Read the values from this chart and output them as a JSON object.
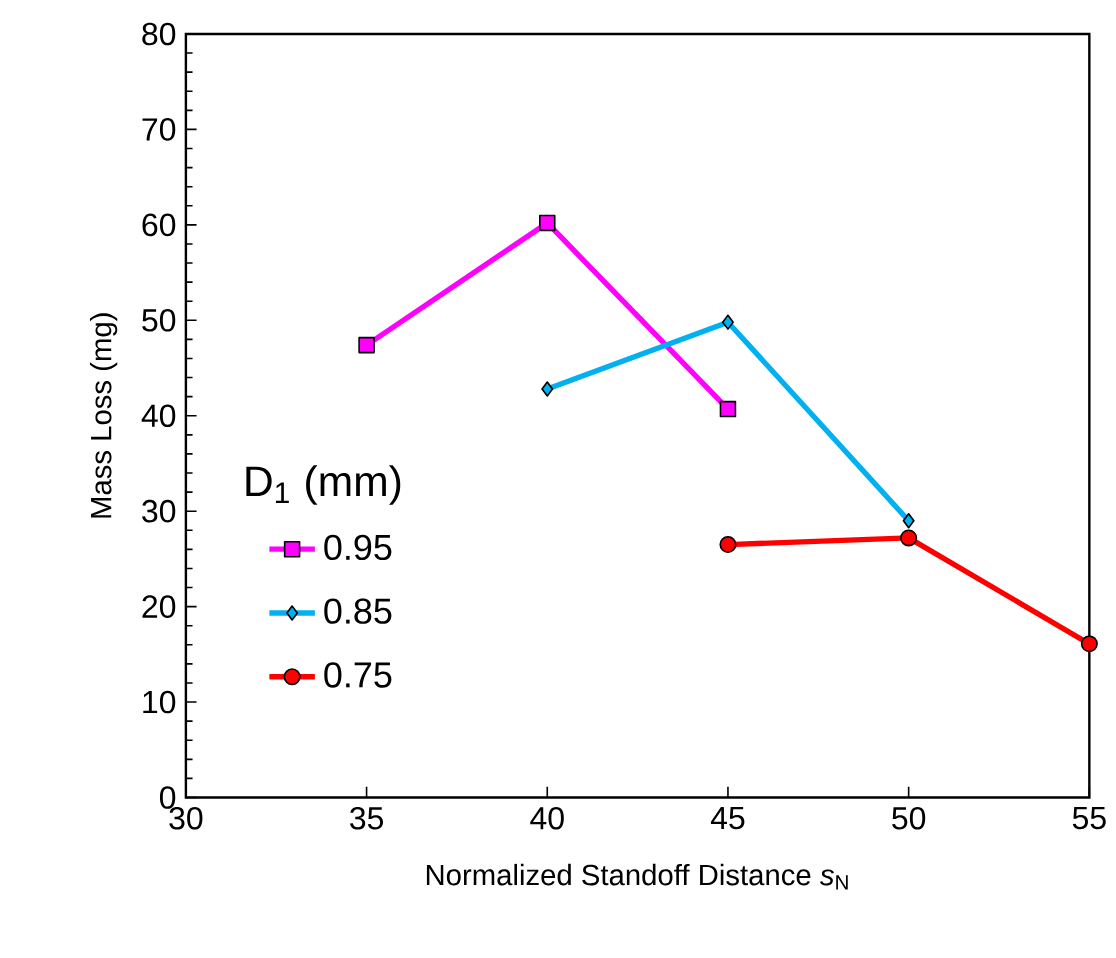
{
  "chart_data": {
    "type": "line",
    "xlabel": "Normalized Standoff Distance *s*$_{N}$",
    "ylabel": "Mass Loss (mg)",
    "legend_title": "D$_{1}$ (mm)",
    "xlim": [
      30,
      55
    ],
    "xticks": [
      30,
      35,
      40,
      45,
      50,
      55
    ],
    "ylim": [
      0,
      80
    ],
    "yticks": [
      0,
      10,
      20,
      30,
      40,
      50,
      60,
      70,
      80
    ],
    "grid": false,
    "legend": "left",
    "line_style": "solid",
    "series": [
      {
        "name": "0.95",
        "color": "#ff00ff",
        "marker": "square",
        "x": [
          35,
          40,
          45
        ],
        "values": [
          47.4,
          60.2,
          40.7
        ]
      },
      {
        "name": "0.85",
        "color": "#00b0f0",
        "marker": "diamond",
        "x": [
          40,
          45,
          50
        ],
        "values": [
          42.8,
          49.8,
          29.0
        ]
      },
      {
        "name": "0.75",
        "color": "#ff0000",
        "marker": "circle",
        "x": [
          45,
          50,
          55
        ],
        "values": [
          26.5,
          27.2,
          16.1
        ]
      }
    ]
  }
}
